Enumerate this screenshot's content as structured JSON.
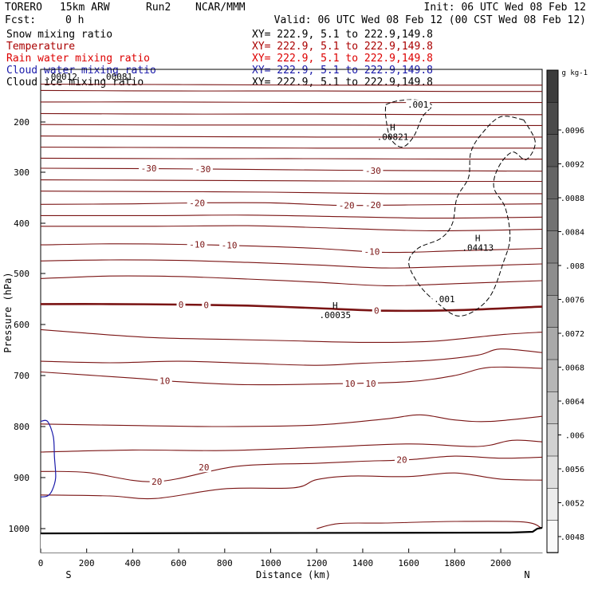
{
  "header": {
    "model": "TORERO",
    "resolution": "15km ARW",
    "run": "Run2",
    "institution": "NCAR/MMM",
    "init": "Init: 06 UTC Wed 08 Feb 12",
    "fcst_label": "Fcst:",
    "fcst_value": "0 h",
    "valid": "Valid: 06 UTC Wed 08 Feb 12 (00 CST Wed 08 Feb 12)"
  },
  "fields": [
    {
      "name": "Snow mixing ratio",
      "color": "#000000",
      "xy": "XY= 222.9, 5.1 to 222.9,149.8"
    },
    {
      "name": "Temperature",
      "color": "#aa0000",
      "xy": "XY= 222.9, 5.1 to 222.9,149.8"
    },
    {
      "name": "Rain water mixing ratio",
      "color": "#dd0000",
      "xy": "XY= 222.9, 5.1 to 222.9,149.8"
    },
    {
      "name": "Cloud water mixing ratio",
      "color": "#1a1aaa",
      "xy": "XY= 222.9, 5.1 to 222.9,149.8"
    },
    {
      "name": "Cloud ice mixing ratio",
      "color": "#000000",
      "xy": "XY= 222.9, 5.1 to 222.9,149.8"
    }
  ],
  "chart_data": {
    "type": "cross-section",
    "xlabel": "Distance (km)",
    "ylabel": "Pressure (hPa)",
    "xlim": [
      0,
      2180
    ],
    "ylim": [
      1050,
      100
    ],
    "x_ticks": [
      0,
      200,
      400,
      600,
      800,
      1000,
      1200,
      1400,
      1600,
      1800,
      2000
    ],
    "y_ticks": [
      200,
      300,
      400,
      500,
      600,
      700,
      800,
      900,
      1000
    ],
    "x_end_labels": {
      "left": "S",
      "right": "N"
    },
    "temperature_contours": [
      {
        "points": [
          [
            0,
            128
          ],
          [
            600,
            129
          ],
          [
            1200,
            130
          ],
          [
            1800,
            130
          ],
          [
            2180,
            130
          ]
        ]
      },
      {
        "points": [
          [
            0,
            140
          ],
          [
            600,
            141
          ],
          [
            1200,
            141
          ],
          [
            1800,
            142
          ],
          [
            2180,
            142
          ]
        ]
      },
      {
        "points": [
          [
            0,
            162
          ],
          [
            600,
            162
          ],
          [
            1200,
            163
          ],
          [
            1800,
            163
          ],
          [
            2180,
            163
          ]
        ]
      },
      {
        "points": [
          [
            0,
            184
          ],
          [
            600,
            185
          ],
          [
            1200,
            185
          ],
          [
            1800,
            186
          ],
          [
            2180,
            186
          ]
        ]
      },
      {
        "points": [
          [
            0,
            205
          ],
          [
            600,
            206
          ],
          [
            1200,
            206
          ],
          [
            1800,
            207
          ],
          [
            2180,
            207
          ]
        ]
      },
      {
        "points": [
          [
            0,
            228
          ],
          [
            600,
            229
          ],
          [
            1200,
            230
          ],
          [
            1800,
            230
          ],
          [
            2180,
            230
          ]
        ]
      },
      {
        "points": [
          [
            0,
            250
          ],
          [
            600,
            251
          ],
          [
            1200,
            252
          ],
          [
            1800,
            252
          ],
          [
            2180,
            252
          ]
        ]
      },
      {
        "points": [
          [
            0,
            272
          ],
          [
            600,
            273
          ],
          [
            1200,
            273
          ],
          [
            1800,
            274
          ],
          [
            2180,
            274
          ]
        ]
      },
      {
        "label": "-30",
        "points": [
          [
            0,
            292
          ],
          [
            500,
            293
          ],
          [
            800,
            294
          ],
          [
            1300,
            296
          ],
          [
            1700,
            297
          ],
          [
            2180,
            298
          ]
        ]
      },
      {
        "points": [
          [
            0,
            315
          ],
          [
            600,
            316
          ],
          [
            1200,
            317
          ],
          [
            1800,
            318
          ],
          [
            2180,
            318
          ]
        ]
      },
      {
        "points": [
          [
            0,
            337
          ],
          [
            500,
            338
          ],
          [
            1000,
            339
          ],
          [
            1500,
            342
          ],
          [
            2180,
            342
          ]
        ]
      },
      {
        "label": "-20",
        "points": [
          [
            0,
            363
          ],
          [
            400,
            362
          ],
          [
            700,
            360
          ],
          [
            1000,
            360
          ],
          [
            1300,
            365
          ],
          [
            1600,
            364
          ],
          [
            2180,
            362
          ]
        ]
      },
      {
        "points": [
          [
            0,
            385
          ],
          [
            500,
            385
          ],
          [
            900,
            384
          ],
          [
            1300,
            387
          ],
          [
            1700,
            390
          ],
          [
            2180,
            388
          ]
        ]
      },
      {
        "points": [
          [
            0,
            406
          ],
          [
            500,
            406
          ],
          [
            900,
            405
          ],
          [
            1300,
            410
          ],
          [
            1700,
            415
          ],
          [
            2180,
            412
          ]
        ]
      },
      {
        "label": "-10",
        "points": [
          [
            0,
            443
          ],
          [
            300,
            441
          ],
          [
            600,
            442
          ],
          [
            900,
            445
          ],
          [
            1200,
            450
          ],
          [
            1500,
            458
          ],
          [
            1800,
            455
          ],
          [
            2180,
            450
          ]
        ]
      },
      {
        "points": [
          [
            0,
            475
          ],
          [
            300,
            473
          ],
          [
            600,
            474
          ],
          [
            900,
            478
          ],
          [
            1200,
            483
          ],
          [
            1500,
            489
          ],
          [
            1800,
            486
          ],
          [
            2180,
            481
          ]
        ]
      },
      {
        "points": [
          [
            0,
            510
          ],
          [
            300,
            505
          ],
          [
            600,
            506
          ],
          [
            900,
            511
          ],
          [
            1200,
            517
          ],
          [
            1500,
            524
          ],
          [
            1800,
            520
          ],
          [
            2180,
            514
          ]
        ]
      },
      {
        "label": "0",
        "bold": true,
        "points": [
          [
            0,
            560
          ],
          [
            300,
            560
          ],
          [
            600,
            561
          ],
          [
            900,
            563
          ],
          [
            1200,
            568
          ],
          [
            1500,
            573
          ],
          [
            1800,
            572
          ],
          [
            2180,
            565
          ]
        ]
      },
      {
        "points": [
          [
            0,
            610
          ],
          [
            200,
            617
          ],
          [
            500,
            626
          ],
          [
            800,
            629
          ],
          [
            1100,
            632
          ],
          [
            1400,
            635
          ],
          [
            1700,
            633
          ],
          [
            2000,
            620
          ],
          [
            2180,
            615
          ]
        ]
      },
      {
        "points": [
          [
            0,
            672
          ],
          [
            300,
            675
          ],
          [
            600,
            672
          ],
          [
            900,
            676
          ],
          [
            1200,
            680
          ],
          [
            1400,
            676
          ],
          [
            1700,
            670
          ],
          [
            1900,
            660
          ],
          [
            2000,
            648
          ],
          [
            2180,
            655
          ]
        ]
      },
      {
        "label": "10",
        "points": [
          [
            0,
            693
          ],
          [
            400,
            705
          ],
          [
            600,
            712
          ],
          [
            900,
            718
          ],
          [
            1300,
            716
          ],
          [
            1600,
            712
          ],
          [
            1800,
            700
          ],
          [
            1950,
            684
          ],
          [
            2180,
            686
          ]
        ]
      },
      {
        "points": [
          [
            0,
            795
          ],
          [
            400,
            798
          ],
          [
            800,
            800
          ],
          [
            1200,
            797
          ],
          [
            1500,
            785
          ],
          [
            1650,
            777
          ],
          [
            1800,
            787
          ],
          [
            1950,
            790
          ],
          [
            2180,
            780
          ]
        ]
      },
      {
        "points": [
          [
            0,
            850
          ],
          [
            400,
            846
          ],
          [
            800,
            847
          ],
          [
            1200,
            841
          ],
          [
            1600,
            834
          ],
          [
            1900,
            839
          ],
          [
            2050,
            827
          ],
          [
            2180,
            830
          ]
        ]
      },
      {
        "label": "20",
        "points": [
          [
            0,
            888
          ],
          [
            200,
            890
          ],
          [
            500,
            908
          ],
          [
            850,
            878
          ],
          [
            1200,
            872
          ],
          [
            1400,
            868
          ],
          [
            1600,
            865
          ],
          [
            1800,
            858
          ],
          [
            2000,
            862
          ],
          [
            2180,
            860
          ]
        ]
      },
      {
        "points": [
          [
            0,
            934
          ],
          [
            300,
            936
          ],
          [
            500,
            941
          ],
          [
            800,
            922
          ],
          [
            1100,
            920
          ],
          [
            1200,
            904
          ],
          [
            1350,
            897
          ],
          [
            1600,
            898
          ],
          [
            1800,
            891
          ],
          [
            2000,
            903
          ],
          [
            2180,
            905
          ]
        ]
      },
      {
        "points": [
          [
            1200,
            1000
          ],
          [
            1300,
            990
          ],
          [
            1500,
            989
          ],
          [
            1800,
            986
          ],
          [
            2100,
            987
          ],
          [
            2180,
            1000
          ]
        ]
      }
    ],
    "temperature_labels": [
      {
        "x": 470,
        "p": 292,
        "text": "-30"
      },
      {
        "x": 705,
        "p": 294,
        "text": "-30"
      },
      {
        "x": 1445,
        "p": 297,
        "text": "-30"
      },
      {
        "x": 680,
        "p": 360,
        "text": "-20"
      },
      {
        "x": 1330,
        "p": 365,
        "text": "-20"
      },
      {
        "x": 1445,
        "p": 364,
        "text": "-20"
      },
      {
        "x": 680,
        "p": 442,
        "text": "-10"
      },
      {
        "x": 820,
        "p": 444,
        "text": "-10"
      },
      {
        "x": 1440,
        "p": 456,
        "text": "-10"
      },
      {
        "x": 610,
        "p": 561,
        "text": "0"
      },
      {
        "x": 720,
        "p": 562,
        "text": "0"
      },
      {
        "x": 1460,
        "p": 573,
        "text": "0"
      },
      {
        "x": 540,
        "p": 710,
        "text": "10"
      },
      {
        "x": 1345,
        "p": 716,
        "text": "10"
      },
      {
        "x": 1435,
        "p": 716,
        "text": "10"
      },
      {
        "x": 505,
        "p": 908,
        "text": "20"
      },
      {
        "x": 710,
        "p": 880,
        "text": "20"
      },
      {
        "x": 1570,
        "p": 865,
        "text": "20"
      }
    ],
    "snow_contours": [
      {
        "level": ".001",
        "points": [
          [
            1500,
            167
          ],
          [
            1550,
            160
          ],
          [
            1630,
            158
          ],
          [
            1700,
            168
          ],
          [
            1660,
            190
          ],
          [
            1620,
            230
          ],
          [
            1570,
            250
          ],
          [
            1520,
            232
          ],
          [
            1500,
            190
          ],
          [
            1500,
            167
          ]
        ]
      },
      {
        "level": ".001",
        "points": [
          [
            2100,
            196
          ],
          [
            2000,
            190
          ],
          [
            1920,
            222
          ],
          [
            1870,
            260
          ],
          [
            1860,
            310
          ],
          [
            1810,
            350
          ],
          [
            1790,
            400
          ],
          [
            1740,
            430
          ],
          [
            1640,
            450
          ],
          [
            1600,
            480
          ],
          [
            1650,
            525
          ],
          [
            1730,
            560
          ],
          [
            1810,
            583
          ],
          [
            1890,
            572
          ],
          [
            1960,
            540
          ],
          [
            2010,
            480
          ],
          [
            2040,
            430
          ],
          [
            2020,
            370
          ],
          [
            1970,
            330
          ],
          [
            1990,
            290
          ],
          [
            2050,
            260
          ],
          [
            2110,
            275
          ],
          [
            2150,
            240
          ],
          [
            2100,
            196
          ]
        ]
      }
    ],
    "snow_labels": [
      {
        "x": 1640,
        "p": 167,
        "text": ".001"
      },
      {
        "x": 1755,
        "p": 550,
        "text": ".001"
      }
    ],
    "cloud_water_contours": [
      {
        "points": [
          [
            0,
            790
          ],
          [
            30,
            790
          ],
          [
            55,
            820
          ],
          [
            60,
            860
          ],
          [
            65,
            900
          ],
          [
            50,
            925
          ],
          [
            30,
            936
          ],
          [
            0,
            938
          ]
        ]
      }
    ],
    "maxima": [
      {
        "x": 1530,
        "p": 226,
        "H": "H",
        "value": ".00821"
      },
      {
        "x": 1900,
        "p": 445,
        "H": "H",
        "value": ".04413"
      },
      {
        "x": 1280,
        "p": 578,
        "H": "H",
        "value": ".00035"
      }
    ],
    "near_header_labels": [
      {
        "x": 90,
        "p": 135,
        "text": ".00012"
      },
      {
        "x": 330,
        "p": 135,
        "text": ".00081"
      }
    ],
    "colorbar": {
      "unit": "g kg-1",
      "tick_values": [
        ".0048",
        ".0052",
        ".0056",
        ".006",
        ".0064",
        ".0068",
        ".0072",
        ".0076",
        ".008",
        ".0084",
        ".0088",
        ".0092",
        ".0096"
      ]
    }
  }
}
